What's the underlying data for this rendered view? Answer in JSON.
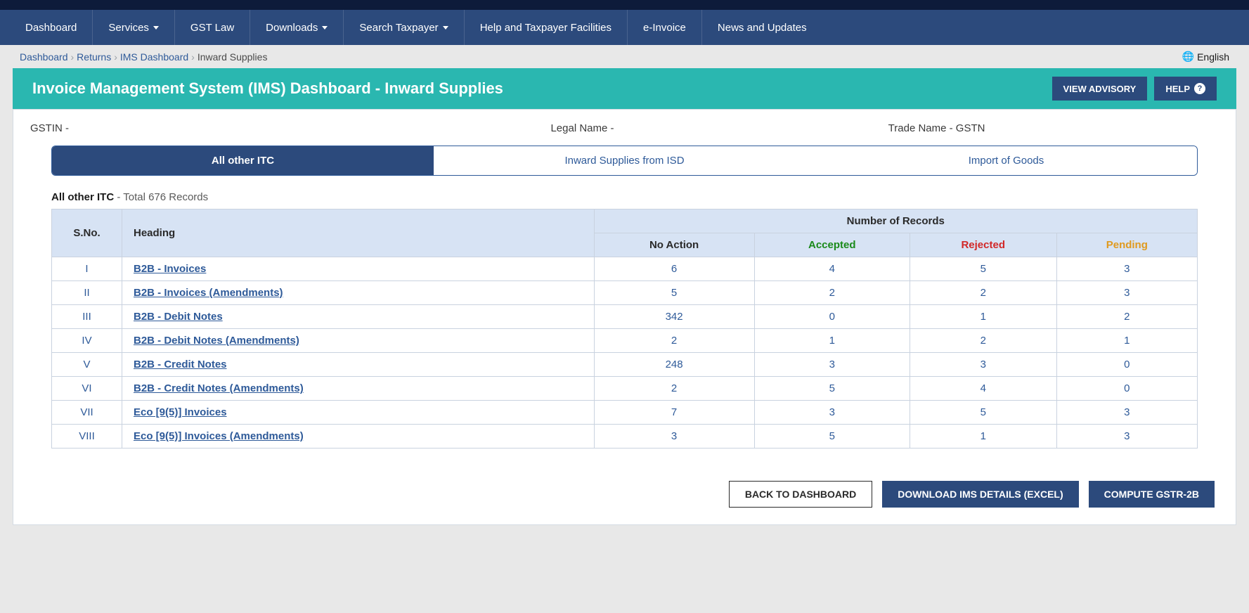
{
  "nav": {
    "items": [
      {
        "label": "Dashboard",
        "dropdown": false
      },
      {
        "label": "Services",
        "dropdown": true
      },
      {
        "label": "GST Law",
        "dropdown": false
      },
      {
        "label": "Downloads",
        "dropdown": true
      },
      {
        "label": "Search Taxpayer",
        "dropdown": true
      },
      {
        "label": "Help and Taxpayer Facilities",
        "dropdown": false
      },
      {
        "label": "e-Invoice",
        "dropdown": false
      },
      {
        "label": "News and Updates",
        "dropdown": false
      }
    ]
  },
  "breadcrumb": {
    "items": [
      {
        "label": "Dashboard",
        "link": true
      },
      {
        "label": "Returns",
        "link": true
      },
      {
        "label": "IMS Dashboard",
        "link": true
      },
      {
        "label": "Inward Supplies",
        "link": false
      }
    ],
    "lang": "English"
  },
  "header": {
    "title": "Invoice Management System (IMS) Dashboard - Inward Supplies",
    "view_advisory": "VIEW ADVISORY",
    "help": "HELP"
  },
  "info": {
    "gstin_label": "GSTIN -",
    "legal_label": "Legal Name -",
    "trade_label": "Trade Name - GSTN"
  },
  "tabs": {
    "items": [
      {
        "label": "All other ITC",
        "active": true
      },
      {
        "label": "Inward Supplies from ISD",
        "active": false
      },
      {
        "label": "Import of Goods",
        "active": false
      }
    ]
  },
  "section": {
    "title_bold": "All other ITC",
    "title_sub": " - Total 676 Records"
  },
  "table": {
    "columns": {
      "sno": "S.No.",
      "heading": "Heading",
      "group": "Number of Records",
      "no_action": "No Action",
      "accepted": "Accepted",
      "rejected": "Rejected",
      "pending": "Pending"
    },
    "rows": [
      {
        "sno": "I",
        "heading": "B2B - Invoices",
        "no_action": "6",
        "accepted": "4",
        "rejected": "5",
        "pending": "3"
      },
      {
        "sno": "II",
        "heading": "B2B - Invoices (Amendments)",
        "no_action": "5",
        "accepted": "2",
        "rejected": "2",
        "pending": "3"
      },
      {
        "sno": "III",
        "heading": "B2B - Debit Notes",
        "no_action": "342",
        "accepted": "0",
        "rejected": "1",
        "pending": "2"
      },
      {
        "sno": "IV",
        "heading": "B2B - Debit Notes (Amendments)",
        "no_action": "2",
        "accepted": "1",
        "rejected": "2",
        "pending": "1"
      },
      {
        "sno": "V",
        "heading": "B2B - Credit Notes",
        "no_action": "248",
        "accepted": "3",
        "rejected": "3",
        "pending": "0"
      },
      {
        "sno": "VI",
        "heading": "B2B - Credit Notes (Amendments)",
        "no_action": "2",
        "accepted": "5",
        "rejected": "4",
        "pending": "0"
      },
      {
        "sno": "VII",
        "heading": "Eco [9(5)] Invoices",
        "no_action": "7",
        "accepted": "3",
        "rejected": "5",
        "pending": "3"
      },
      {
        "sno": "VIII",
        "heading": "Eco [9(5)] Invoices (Amendments)",
        "no_action": "3",
        "accepted": "5",
        "rejected": "1",
        "pending": "3"
      }
    ],
    "column_colors": {
      "accepted": "#1a8a1a",
      "rejected": "#d22828",
      "pending": "#e09a1e"
    }
  },
  "buttons": {
    "back": "BACK TO DASHBOARD",
    "download": "DOWNLOAD IMS DETAILS (EXCEL)",
    "compute": "COMPUTE GSTR-2B"
  },
  "colors": {
    "nav_bg": "#2c4a7c",
    "teal": "#2ab7b0",
    "link": "#2e5a99",
    "th_bg": "#d7e3f4"
  }
}
